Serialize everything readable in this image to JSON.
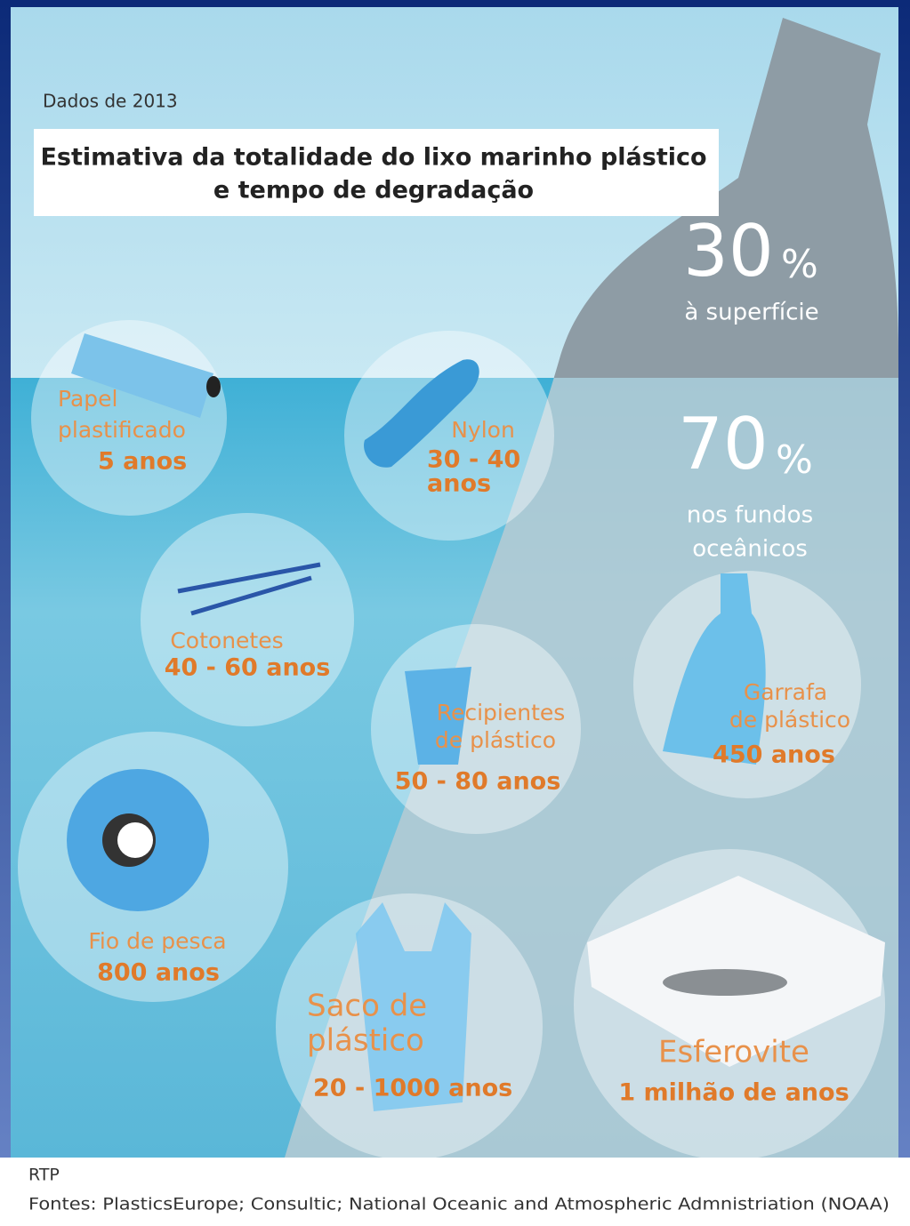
{
  "note": "Dados de 2013",
  "title_lines": [
    "Estimativa da totalidade do lixo marinho plástico",
    "e tempo de degradação"
  ],
  "stats": [
    {
      "number": "30",
      "unit": "%",
      "label_lines": [
        "à superfície"
      ]
    },
    {
      "number": "70",
      "unit": "%",
      "label_lines": [
        "nos fundos",
        "oceânicos"
      ]
    }
  ],
  "items": [
    {
      "name_lines": [
        "Papel",
        "plastificado"
      ],
      "duration_lines": [
        "5 anos"
      ]
    },
    {
      "name_lines": [
        "Nylon"
      ],
      "duration_lines": [
        "30 - 40",
        "anos"
      ]
    },
    {
      "name_lines": [
        "Cotonetes"
      ],
      "duration_lines": [
        "40 - 60 anos"
      ]
    },
    {
      "name_lines": [
        "Recipientes",
        "de plástico"
      ],
      "duration_lines": [
        "50 - 80 anos"
      ]
    },
    {
      "name_lines": [
        "Garrafa",
        "de plástico"
      ],
      "duration_lines": [
        "450 anos"
      ]
    },
    {
      "name_lines": [
        "Fio de pesca"
      ],
      "duration_lines": [
        "800 anos"
      ]
    },
    {
      "name_lines": [
        "Saco de",
        "plástico"
      ],
      "duration_lines": [
        "20 - 1000 anos"
      ]
    },
    {
      "name_lines": [
        "Esferovite"
      ],
      "duration_lines": [
        "1 milhão de anos"
      ]
    }
  ],
  "credit": "RTP",
  "sources": "Fontes: PlasticsEurope; Consultic; National Oceanic and Atmospheric Admnistriation (NOAA)"
}
